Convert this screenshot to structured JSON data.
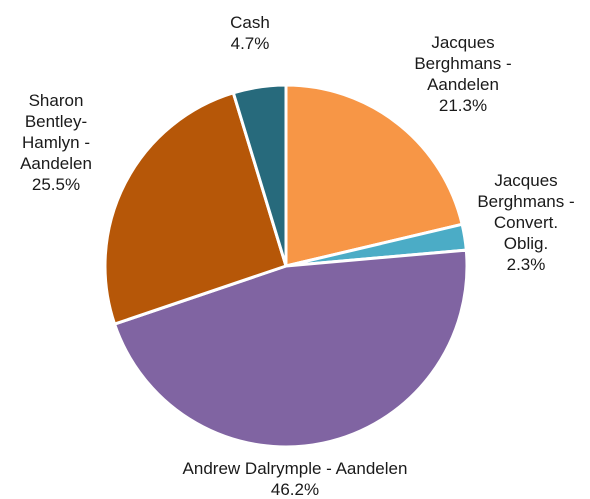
{
  "chart_data": {
    "type": "pie",
    "title": "",
    "start_angle_deg": 0,
    "direction": "clockwise",
    "slices": [
      {
        "label": [
          "Jacques",
          "Berghmans -",
          "Aandelen"
        ],
        "value_text": "21.3%",
        "value": 21.3,
        "color": "#F79646"
      },
      {
        "label": [
          "Jacques",
          "Berghmans -",
          "Convert.",
          "Oblig."
        ],
        "value_text": "2.3%",
        "value": 2.3,
        "color": "#4BACC6"
      },
      {
        "label": [
          "Andrew Dalrymple - Aandelen"
        ],
        "value_text": "46.2%",
        "value": 46.2,
        "color": "#8064A2"
      },
      {
        "label": [
          "Sharon",
          "Bentley-",
          "Hamlyn -",
          "Aandelen"
        ],
        "value_text": "25.5%",
        "value": 25.5,
        "color": "#B65708"
      },
      {
        "label": [
          "Cash"
        ],
        "value_text": "4.7%",
        "value": 4.7,
        "color": "#276A7C"
      }
    ]
  }
}
